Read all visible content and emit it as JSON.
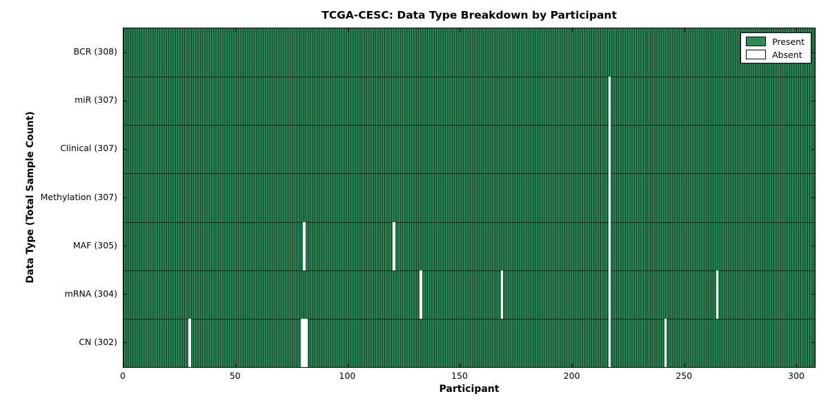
{
  "chart_data": {
    "type": "heatmap",
    "title": "TCGA-CESC: Data Type Breakdown by Participant",
    "xlabel": "Participant",
    "ylabel": "Data Type (Total Sample Count)",
    "x_ticks": [
      0,
      50,
      100,
      150,
      200,
      250,
      300
    ],
    "xlim": [
      0,
      308
    ],
    "n_participants": 308,
    "grid": false,
    "legend": {
      "position": "upper right",
      "entries": [
        {
          "label": "Present",
          "color": "#2e8b57"
        },
        {
          "label": "Absent",
          "color": "#ffffff"
        }
      ]
    },
    "rows": [
      {
        "label": "BCR (308)",
        "data_type": "BCR",
        "present_count": 308,
        "absent_participants": []
      },
      {
        "label": "miR (307)",
        "data_type": "miR",
        "present_count": 307,
        "absent_participants": [
          216
        ]
      },
      {
        "label": "Clinical (307)",
        "data_type": "Clinical",
        "present_count": 307,
        "absent_participants": [
          216
        ]
      },
      {
        "label": "Methylation (307)",
        "data_type": "Methylation",
        "present_count": 307,
        "absent_participants": [
          216
        ]
      },
      {
        "label": "MAF (305)",
        "data_type": "MAF",
        "present_count": 305,
        "absent_participants": [
          80,
          120,
          216
        ]
      },
      {
        "label": "mRNA (304)",
        "data_type": "mRNA",
        "present_count": 304,
        "absent_participants": [
          132,
          168,
          216,
          264
        ]
      },
      {
        "label": "CN (302)",
        "data_type": "CN",
        "present_count": 302,
        "absent_participants": [
          29,
          79,
          80,
          81,
          216,
          241
        ]
      }
    ],
    "colors": {
      "present": "#2e8b57",
      "absent": "#ffffff",
      "bar_edge": "#143f27",
      "axis": "#000000"
    }
  }
}
